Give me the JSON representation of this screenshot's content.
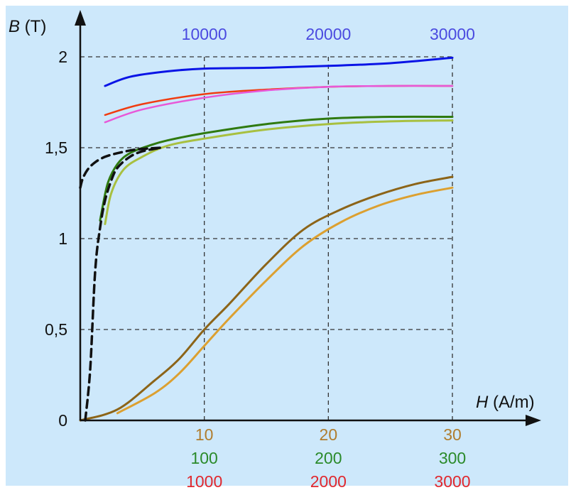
{
  "chart_data": {
    "type": "line",
    "ylabel_var": "B",
    "ylabel_unit": " (T)",
    "xlabel_var": "H",
    "xlabel_unit": " (A/m)",
    "ylim": [
      0,
      2.1
    ],
    "xlim": [
      0,
      30
    ],
    "grid": true,
    "y_ticks": [
      {
        "value": 0,
        "label": "0"
      },
      {
        "value": 0.5,
        "label": "0,5"
      },
      {
        "value": 1,
        "label": "1"
      },
      {
        "value": 1.5,
        "label": "1,5"
      },
      {
        "value": 2,
        "label": "2"
      }
    ],
    "x_tick_rows": [
      {
        "color": "#b07d2e",
        "ticks": [
          {
            "value": 10,
            "label": "10"
          },
          {
            "value": 20,
            "label": "20"
          },
          {
            "value": 30,
            "label": "30"
          }
        ]
      },
      {
        "color": "#2a8a2a",
        "ticks": [
          {
            "value": 10,
            "label": "100"
          },
          {
            "value": 20,
            "label": "200"
          },
          {
            "value": 30,
            "label": "300"
          }
        ]
      },
      {
        "color": "#e0282e",
        "ticks": [
          {
            "value": 10,
            "label": "1000"
          },
          {
            "value": 20,
            "label": "2000"
          },
          {
            "value": 30,
            "label": "3000"
          }
        ]
      }
    ],
    "x_tick_top": {
      "color": "#4a4ae0",
      "ticks": [
        {
          "value": 10,
          "label": "10000"
        },
        {
          "value": 20,
          "label": "20000"
        },
        {
          "value": 30,
          "label": "30000"
        }
      ]
    },
    "colors": {
      "background": "#cde8fb",
      "axis": "#111111",
      "grid": "#333333"
    },
    "series": [
      {
        "color": "#0a14e6",
        "width": 3,
        "dash": false,
        "x": [
          2,
          4,
          7,
          10,
          15,
          20,
          25,
          30
        ],
        "y": [
          1.84,
          1.89,
          1.92,
          1.935,
          1.94,
          1.95,
          1.965,
          1.995
        ]
      },
      {
        "color": "#f03c10",
        "width": 2.5,
        "dash": false,
        "x": [
          2,
          5,
          10,
          15,
          20,
          25,
          30
        ],
        "y": [
          1.68,
          1.74,
          1.795,
          1.82,
          1.835,
          1.84,
          1.84
        ]
      },
      {
        "color": "#e858d8",
        "width": 2.5,
        "dash": false,
        "x": [
          2,
          5,
          10,
          15,
          20,
          25,
          30
        ],
        "y": [
          1.64,
          1.71,
          1.775,
          1.815,
          1.835,
          1.84,
          1.84
        ]
      },
      {
        "color": "#2f7a10",
        "width": 3,
        "dash": false,
        "x": [
          1.6,
          2.2,
          3,
          4,
          5.5,
          7,
          10,
          15,
          20,
          25,
          30
        ],
        "y": [
          1.1,
          1.3,
          1.41,
          1.47,
          1.51,
          1.54,
          1.58,
          1.63,
          1.66,
          1.67,
          1.67
        ]
      },
      {
        "color": "#a8c040",
        "width": 3,
        "dash": false,
        "x": [
          2,
          2.5,
          3.5,
          5,
          7,
          10,
          15,
          20,
          25,
          30
        ],
        "y": [
          1.08,
          1.25,
          1.38,
          1.45,
          1.51,
          1.55,
          1.6,
          1.63,
          1.645,
          1.65
        ]
      },
      {
        "color": "#8c6418",
        "width": 3,
        "dash": false,
        "x": [
          0,
          3,
          6,
          8,
          10,
          12,
          15,
          18,
          21,
          24,
          27,
          30
        ],
        "y": [
          0,
          0.06,
          0.22,
          0.34,
          0.5,
          0.64,
          0.86,
          1.05,
          1.16,
          1.24,
          1.3,
          1.34
        ]
      },
      {
        "color": "#dca030",
        "width": 3,
        "dash": false,
        "x": [
          3,
          6,
          8,
          10,
          12,
          15,
          18,
          21,
          24,
          27,
          30
        ],
        "y": [
          0.04,
          0.15,
          0.26,
          0.41,
          0.56,
          0.77,
          0.96,
          1.09,
          1.18,
          1.24,
          1.28
        ]
      },
      {
        "color": "#111111",
        "width": 3.5,
        "dash": true,
        "x": [
          0.4,
          0.8,
          1.2,
          1.6,
          2.0,
          2.5,
          3.0,
          4.0,
          5.0,
          6.5
        ],
        "y": [
          0,
          0.28,
          0.82,
          1.06,
          1.21,
          1.32,
          1.39,
          1.45,
          1.48,
          1.5
        ]
      },
      {
        "color": "#111111",
        "width": 3.5,
        "dash": true,
        "x": [
          0,
          0.2,
          0.6,
          1.2,
          2,
          3,
          4.5,
          6.5
        ],
        "y": [
          1.28,
          1.33,
          1.38,
          1.42,
          1.45,
          1.47,
          1.49,
          1.5
        ]
      }
    ]
  }
}
